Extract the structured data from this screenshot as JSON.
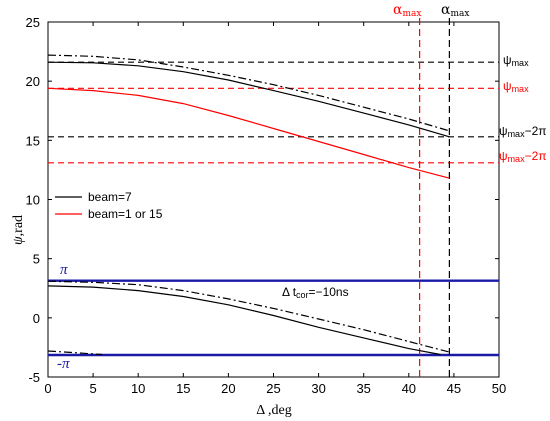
{
  "chart_data": {
    "type": "line",
    "xlabel": "Δ ,deg",
    "ylabel": "ψ, rad",
    "xlim": [
      0,
      50
    ],
    "ylim": [
      -5,
      25
    ],
    "xticks": [
      0,
      5,
      10,
      15,
      20,
      25,
      30,
      35,
      40,
      45,
      50
    ],
    "yticks": [
      -5,
      0,
      5,
      10,
      15,
      20,
      25
    ],
    "grid": false,
    "legend_position": "middle-left",
    "legend": [
      {
        "label": "beam=7",
        "color": "#000000"
      },
      {
        "label": "beam=1 or 15",
        "color": "#ff0000"
      }
    ],
    "series": [
      {
        "name": "beam=7",
        "style": "solid",
        "color": "#000000",
        "x": [
          0,
          5,
          10,
          15,
          20,
          25,
          30,
          35,
          40,
          44.5
        ],
        "y": [
          21.6,
          21.55,
          21.3,
          20.8,
          20.1,
          19.2,
          18.3,
          17.3,
          16.3,
          15.3
        ]
      },
      {
        "name": "beam=1 or 15",
        "style": "solid",
        "color": "#ff0000",
        "x": [
          0,
          5,
          10,
          15,
          20,
          25,
          30,
          35,
          40,
          44.5
        ],
        "y": [
          19.4,
          19.2,
          18.8,
          18.1,
          17.1,
          16.0,
          14.9,
          13.8,
          12.7,
          11.8
        ]
      },
      {
        "name": "",
        "style": "dashdot",
        "color": "#000000",
        "x": [
          0,
          5,
          10,
          15,
          20,
          25,
          30,
          35,
          40,
          44.5
        ],
        "y": [
          22.2,
          22.1,
          21.8,
          21.2,
          20.5,
          19.7,
          18.8,
          17.8,
          16.8,
          15.8
        ]
      },
      {
        "name": "",
        "style": "solid",
        "color": "#000000",
        "x": [
          0,
          5,
          10,
          15,
          20,
          25,
          30,
          35,
          40,
          43.5
        ],
        "y": [
          2.7,
          2.6,
          2.3,
          1.8,
          1.1,
          0.2,
          -0.8,
          -1.7,
          -2.6,
          -3.1
        ]
      },
      {
        "name": "",
        "style": "dashdot",
        "color": "#000000",
        "x": [
          0,
          5,
          10,
          15,
          20,
          25,
          30,
          35,
          40,
          44.5
        ],
        "y": [
          3.1,
          3.0,
          2.8,
          2.3,
          1.6,
          0.8,
          -0.1,
          -1.0,
          -2.0,
          -2.9
        ]
      },
      {
        "name": "",
        "style": "dashdot",
        "color": "#000000",
        "x": [
          0,
          2,
          4,
          6
        ],
        "y": [
          -2.8,
          -2.9,
          -3.0,
          -3.1
        ]
      }
    ],
    "hlines": [
      {
        "y": 21.6,
        "color": "#000000",
        "style": "dashed",
        "label": "ψ max"
      },
      {
        "y": 19.4,
        "color": "#ff0000",
        "style": "dashed",
        "label": "ψ max"
      },
      {
        "y": 15.3,
        "color": "#000000",
        "style": "dashed",
        "label": "ψ max−2π"
      },
      {
        "y": 13.1,
        "color": "#ff0000",
        "style": "dashed",
        "label": "ψ max−2π"
      },
      {
        "y": 3.14159,
        "color": "#1a1aa6",
        "style": "solid",
        "label": "π"
      },
      {
        "y": -3.14159,
        "color": "#1a1aa6",
        "style": "solid",
        "label": "-π"
      }
    ],
    "vlines": [
      {
        "x": 41.2,
        "color": "#ff0000",
        "style": "dashed",
        "label": "α max"
      },
      {
        "x": 44.5,
        "color": "#000000",
        "style": "dashed",
        "label": "α max"
      }
    ],
    "annotations": [
      {
        "text": "Δ t cor =−10ns",
        "x": 30,
        "y": 2.0
      }
    ]
  },
  "labels": {
    "alpha_red": "α",
    "alpha_red_sub": "max",
    "alpha_black": "α",
    "alpha_black_sub": "max",
    "psi_max_black": "ψ",
    "psi_max_black_sub": "max",
    "psi_max_red": "ψ",
    "psi_max_red_sub": "max",
    "psi_2pi_black": "ψ",
    "psi_2pi_black_sub": "max",
    "psi_2pi_black_tail": "−2π",
    "psi_2pi_red": "ψ",
    "psi_2pi_red_sub": "max",
    "psi_2pi_red_tail": "−2π",
    "pi": "π",
    "neg_pi": "-π",
    "annotation_main": "Δ t",
    "annotation_sub": "cor",
    "annotation_tail": "=−10ns",
    "ylabel_psi": "ψ",
    "ylabel_unit": ",rad",
    "xlabel_delta": "Δ",
    "xlabel_unit": " ,deg"
  },
  "colors": {
    "red": "#ff0000",
    "black": "#000000",
    "blue": "#1a1aa6"
  }
}
